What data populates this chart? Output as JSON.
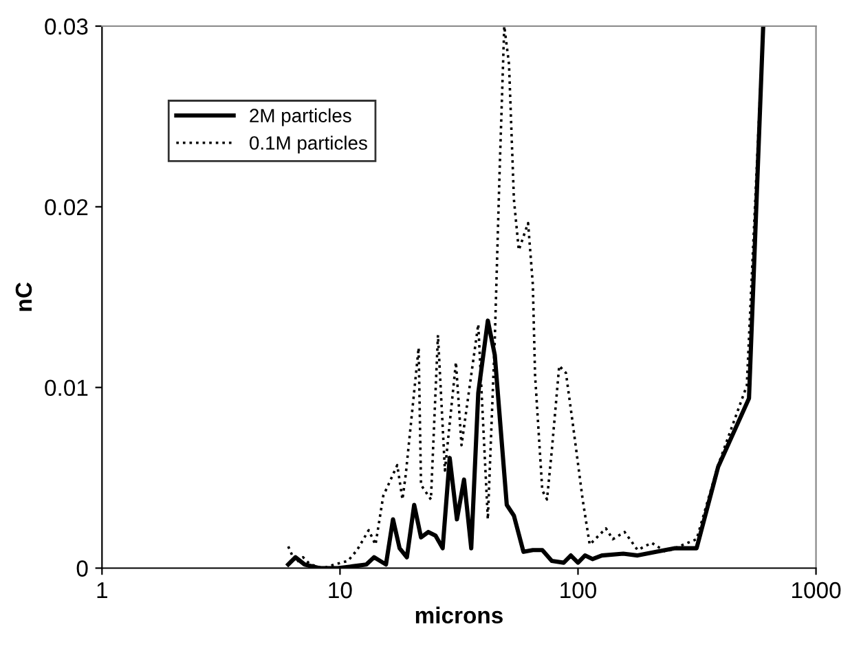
{
  "chart_data": {
    "type": "line",
    "xlabel": "microns",
    "ylabel": "nC",
    "log": "x",
    "xlim": [
      1,
      1000
    ],
    "xticks": [
      1,
      10,
      100,
      1000
    ],
    "ylim": [
      0,
      0.03
    ],
    "yticks": [
      0,
      0.01,
      0.02,
      0.03
    ],
    "grid": false,
    "legend": "top left",
    "marker": "none",
    "series": [
      {
        "name": "2M particles",
        "color": "#000000",
        "line_style": "solid",
        "x": [
          6.06,
          6.5,
          7.1,
          8.2,
          9.8,
          11.3,
          12.9,
          13.9,
          15.6,
          16.7,
          17.8,
          19.1,
          20.5,
          21.9,
          23.5,
          25.2,
          27.0,
          28.9,
          31.0,
          33.2,
          35.6,
          38.1,
          41.8,
          44.7,
          50.2,
          53.8,
          59.0,
          64.6,
          70.8,
          77.6,
          87.1,
          93.3,
          100,
          107,
          115,
          126,
          155,
          178,
          213,
          256,
          315,
          388,
          523,
          600
        ],
        "values": [
          0.0002,
          0.0006,
          0.0002,
          0,
          0,
          0.0001,
          0.0002,
          0.0006,
          0.0002,
          0.0027,
          0.0011,
          0.0006,
          0.0035,
          0.0017,
          0.002,
          0.0018,
          0.0011,
          0.0061,
          0.0027,
          0.0049,
          0.0011,
          0.0097,
          0.0137,
          0.0118,
          0.0035,
          0.0029,
          0.0009,
          0.001,
          0.001,
          0.0004,
          0.0003,
          0.0007,
          0.0003,
          0.0007,
          0.0005,
          0.0007,
          0.0008,
          0.0007,
          0.0009,
          0.0011,
          0.0011,
          0.0056,
          0.0094,
          0.03
        ]
      },
      {
        "name": "0.1M particles",
        "color": "#000000",
        "line_style": "dotted",
        "x": [
          6.06,
          6.5,
          7.0,
          7.5,
          8.5,
          9.5,
          10.8,
          11.8,
          13.2,
          14.1,
          15.2,
          17.4,
          18.3,
          18.9,
          21.4,
          21.9,
          24.1,
          25.8,
          27.6,
          30.7,
          32.4,
          38.1,
          41.8,
          44.7,
          46.8,
          49,
          51.3,
          53.8,
          56.4,
          61.7,
          64.6,
          66.0,
          70.8,
          74.1,
          77.6,
          83.4,
          89.0,
          95.3,
          104.6,
          112,
          131,
          140,
          157,
          178,
          204,
          234,
          315,
          388,
          512,
          600
        ],
        "values": [
          0.0012,
          0.0003,
          0.0006,
          0.0002,
          0,
          0.0002,
          0.0004,
          0.001,
          0.0021,
          0.0013,
          0.004,
          0.0057,
          0.0038,
          0.0052,
          0.0122,
          0.0046,
          0.0038,
          0.0129,
          0.0054,
          0.0114,
          0.0068,
          0.0135,
          0.0027,
          0.0126,
          0.0218,
          0.03,
          0.0279,
          0.0204,
          0.0176,
          0.0191,
          0.0157,
          0.0107,
          0.0043,
          0.0038,
          0.0065,
          0.0112,
          0.0108,
          0.0079,
          0.0038,
          0.0013,
          0.0022,
          0.0016,
          0.002,
          0.001,
          0.0014,
          0.0009,
          0.0016,
          0.0057,
          0.0101,
          0.03
        ]
      }
    ]
  }
}
